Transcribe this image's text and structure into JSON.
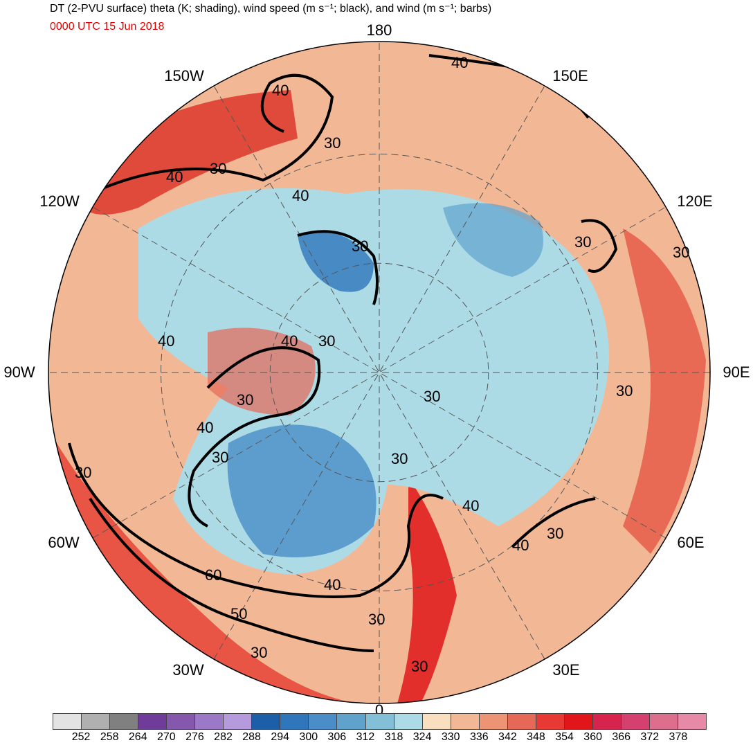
{
  "header": {
    "title": "DT (2-PVU surface) theta (K; shading), wind speed (m s⁻¹; black), and wind (m s⁻¹; barbs)",
    "valid_time": "0000 UTC 15 Jun 2018"
  },
  "map": {
    "projection": "north-polar-stereographic",
    "longitude_labels": [
      {
        "key": "lon_180",
        "text": "180"
      },
      {
        "key": "lon_150E",
        "text": "150E"
      },
      {
        "key": "lon_120E",
        "text": "120E"
      },
      {
        "key": "lon_90E",
        "text": "90E"
      },
      {
        "key": "lon_60E",
        "text": "60E"
      },
      {
        "key": "lon_30E",
        "text": "30E"
      },
      {
        "key": "lon_0",
        "text": "0"
      },
      {
        "key": "lon_30W",
        "text": "30W"
      },
      {
        "key": "lon_60W",
        "text": "60W"
      },
      {
        "key": "lon_90W",
        "text": "90W"
      },
      {
        "key": "lon_120W",
        "text": "120W"
      },
      {
        "key": "lon_150W",
        "text": "150W"
      }
    ],
    "wind_speed_contour_labels": [
      "30",
      "40",
      "50",
      "60"
    ],
    "contour_colors": {
      "jet": "#000000",
      "coastline": "#3a3a3a",
      "graticule": "#555555"
    }
  },
  "colorbar": {
    "tick_labels": [
      "252",
      "258",
      "264",
      "270",
      "276",
      "282",
      "288",
      "294",
      "300",
      "306",
      "312",
      "318",
      "324",
      "330",
      "336",
      "342",
      "348",
      "354",
      "360",
      "366",
      "372",
      "378"
    ],
    "colors": [
      "#e3e3e3",
      "#b0b0b0",
      "#808080",
      "#6f3c9a",
      "#8358ad",
      "#9b79c7",
      "#b69bdc",
      "#1c5ea8",
      "#2f76bb",
      "#4a8dc8",
      "#5fa3cd",
      "#84bfd8",
      "#acdbe6",
      "#f8dfc0",
      "#f2b896",
      "#ec9474",
      "#e66856",
      "#e83a35",
      "#e0161a",
      "#d7244f",
      "#d4416f",
      "#de6e8e",
      "#e78aa8"
    ]
  }
}
